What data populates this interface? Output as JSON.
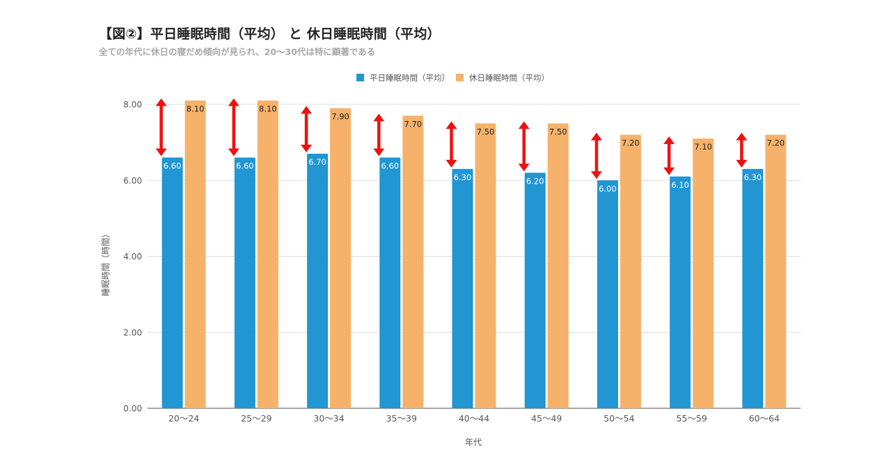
{
  "header": {
    "title": "【図②】平日睡眠時間（平均） と 休日睡眠時間（平均）",
    "subtitle": "全ての年代に休日の寝だめ傾向が見られ、20〜30代は特に顕著である"
  },
  "colors": {
    "weekday": "#2196d3",
    "holiday": "#f6b26b",
    "arrow": "#ee1111",
    "grid": "#dddddd",
    "axis": "#888888"
  },
  "chart_data": {
    "type": "bar",
    "title": "",
    "xlabel": "年代",
    "ylabel": "睡眠時間（時間）",
    "ylim": [
      0,
      8
    ],
    "yticks": [
      "0.00",
      "2.00",
      "4.00",
      "6.00",
      "8.00"
    ],
    "grid": true,
    "legend_position": "top-center",
    "categories": [
      "20〜24",
      "25〜29",
      "30〜34",
      "35〜39",
      "40〜44",
      "45〜49",
      "50〜54",
      "55〜59",
      "60〜64"
    ],
    "series": [
      {
        "name": "平日睡眠時間（平均）",
        "values": [
          6.6,
          6.6,
          6.7,
          6.6,
          6.3,
          6.2,
          6.0,
          6.1,
          6.3
        ],
        "labels": [
          "6.60",
          "6.60",
          "6.70",
          "6.60",
          "6.30",
          "6.20",
          "6.00",
          "6.10",
          "6.30"
        ]
      },
      {
        "name": "休日睡眠時間（平均）",
        "values": [
          8.1,
          8.1,
          7.9,
          7.7,
          7.5,
          7.5,
          7.2,
          7.1,
          7.2
        ],
        "labels": [
          "8.10",
          "8.10",
          "7.90",
          "7.70",
          "7.50",
          "7.50",
          "7.20",
          "7.10",
          "7.20"
        ]
      }
    ],
    "annotations": "red double-headed arrows between weekday and holiday bars"
  }
}
